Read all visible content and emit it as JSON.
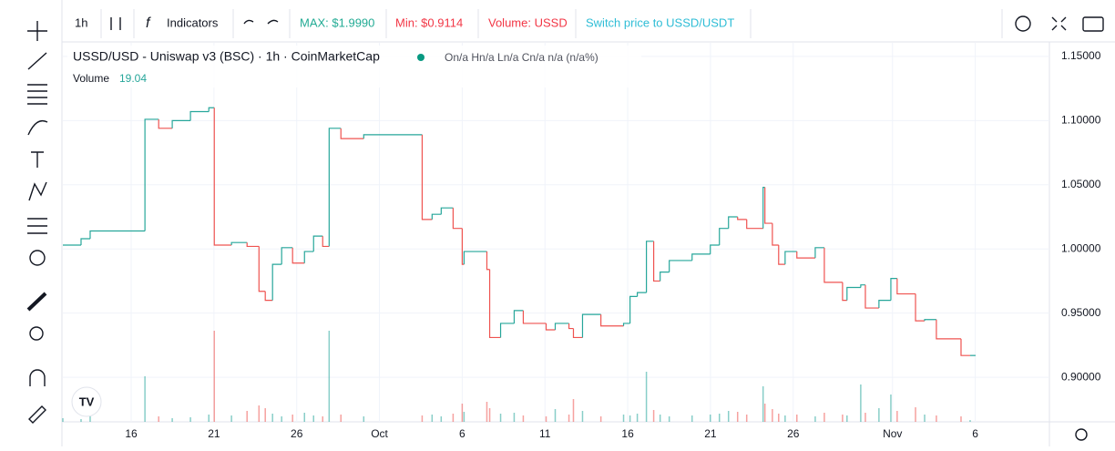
{
  "toolbar": {
    "interval": "1h",
    "indicators": "Indicators",
    "max": "MAX: $1.9990",
    "min": "Min: $0.9114",
    "volume": "Volume: USSD",
    "switch": "Switch price to USSD/USDT"
  },
  "chart_data": {
    "type": "step",
    "title": "USSD/USD - Uniswap v3 (BSC) · 1h · CoinMarketCap",
    "ohlc": "On/a Hn/a Ln/a Cn/a n/a (n/a%)",
    "volume_label": "Volume",
    "x": [
      11.87,
      12.97,
      13.52,
      16.83,
      17.66,
      18.48,
      19.58,
      20.69,
      21.02,
      22.06,
      23.0,
      23.72,
      24.1,
      24.54,
      25.09,
      25.75,
      26.47,
      27.02,
      27.57,
      27.96,
      28.67,
      30.05,
      33.58,
      34.18,
      34.73,
      35.45,
      36.0,
      36.11,
      37.49,
      37.66,
      38.32,
      39.14,
      39.69,
      41.07,
      41.62,
      42.45,
      42.72,
      43.27,
      44.38,
      45.75,
      46.14,
      46.58,
      47.13,
      47.57,
      47.96,
      48.51,
      49.89,
      50.99,
      51.54,
      52.09,
      52.64,
      53.19,
      54.18,
      54.29,
      54.74,
      55.12,
      55.51,
      56.22,
      57.33,
      57.88,
      58.98,
      59.25,
      60.08,
      60.36,
      61.18,
      61.9,
      62.28,
      63.39,
      63.94,
      64.65,
      66.14,
      66.69
    ],
    "series": [
      {
        "name": "USSD/USD",
        "up_color": "#26a69a",
        "down_color": "#ef5350",
        "values": [
          1.003,
          1.008,
          1.014,
          1.101,
          1.094,
          1.1,
          1.107,
          1.11,
          1.003,
          1.005,
          1.002,
          0.967,
          0.96,
          0.988,
          1.001,
          0.989,
          0.998,
          1.01,
          1.002,
          1.094,
          1.086,
          1.089,
          1.023,
          1.027,
          1.032,
          1.016,
          0.988,
          0.998,
          0.984,
          0.931,
          0.942,
          0.952,
          0.942,
          0.937,
          0.942,
          0.938,
          0.931,
          0.949,
          0.94,
          0.942,
          0.963,
          0.966,
          1.006,
          0.975,
          0.982,
          0.991,
          0.996,
          1.003,
          1.016,
          1.025,
          1.023,
          1.016,
          1.048,
          1.02,
          1.003,
          0.988,
          0.998,
          0.993,
          1.001,
          0.974,
          0.96,
          0.97,
          0.972,
          0.954,
          0.96,
          0.977,
          0.965,
          0.944,
          0.945,
          0.93,
          0.917,
          0.917
        ]
      },
      {
        "name": "Volume",
        "values": [
          40,
          30,
          60,
          500,
          60,
          40,
          50,
          80,
          1000,
          70,
          120,
          180,
          150,
          90,
          60,
          80,
          100,
          70,
          60,
          1000,
          80,
          60,
          70,
          80,
          60,
          90,
          200,
          110,
          220,
          150,
          90,
          100,
          70,
          60,
          140,
          80,
          250,
          120,
          60,
          80,
          70,
          90,
          550,
          130,
          80,
          60,
          70,
          80,
          90,
          120,
          110,
          80,
          390,
          200,
          140,
          90,
          70,
          80,
          60,
          100,
          80,
          70,
          410,
          100,
          150,
          300,
          120,
          160,
          80,
          70,
          60,
          19.04
        ]
      }
    ],
    "xlim": [
      11.87,
      71.48
    ],
    "xticks": [
      {
        "value": 16,
        "label": "16"
      },
      {
        "value": 21,
        "label": "21"
      },
      {
        "value": 26,
        "label": "26"
      },
      {
        "value": 31,
        "label": "Oct"
      },
      {
        "value": 36,
        "label": "6"
      },
      {
        "value": 41,
        "label": "11"
      },
      {
        "value": 46,
        "label": "16"
      },
      {
        "value": 51,
        "label": "21"
      },
      {
        "value": 56,
        "label": "26"
      },
      {
        "value": 62,
        "label": "Nov"
      },
      {
        "value": 67,
        "label": "6"
      }
    ],
    "ylim": [
      0.8653,
      1.1606
    ],
    "yticks": [
      {
        "value": 1.15,
        "label": "1.15000"
      },
      {
        "value": 1.1,
        "label": "1.10000"
      },
      {
        "value": 1.05,
        "label": "1.05000"
      },
      {
        "value": 1.0,
        "label": "1.00000"
      },
      {
        "value": 0.95,
        "label": "0.95000"
      },
      {
        "value": 0.9,
        "label": "0.90000"
      }
    ],
    "grid": true
  }
}
